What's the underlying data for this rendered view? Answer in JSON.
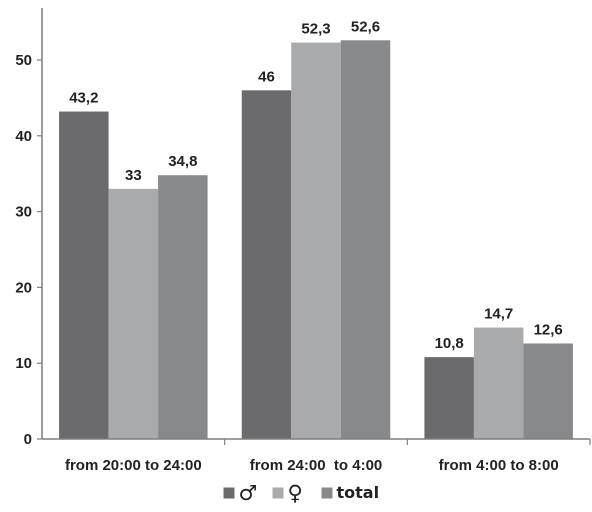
{
  "chart_data": {
    "type": "bar",
    "title": "",
    "xlabel": "",
    "ylabel": "",
    "categories": [
      "from 20:00 to 24:00",
      "from 24:00  to 4:00",
      "from 4:00 to 8:00"
    ],
    "series": [
      {
        "name": "♂",
        "color": "#6b6b6d",
        "values": [
          43.2,
          46,
          10.8
        ],
        "labels": [
          "43,2",
          "46",
          "10,8"
        ]
      },
      {
        "name": "♀",
        "color": "#a9aaac",
        "values": [
          33,
          52.3,
          14.7
        ],
        "labels": [
          "33",
          "52,3",
          "14,7"
        ]
      },
      {
        "name": "total",
        "color": "#88898b",
        "values": [
          34.8,
          52.6,
          12.6
        ],
        "labels": [
          "34,8",
          "52,6",
          "12,6"
        ]
      }
    ],
    "ylim": [
      0,
      55
    ],
    "yticks": [
      0,
      10,
      20,
      30,
      40,
      50
    ],
    "grid": false,
    "legend_position": "bottom-center",
    "axis_color": "#7f7f7f",
    "text_color": "#222222"
  }
}
